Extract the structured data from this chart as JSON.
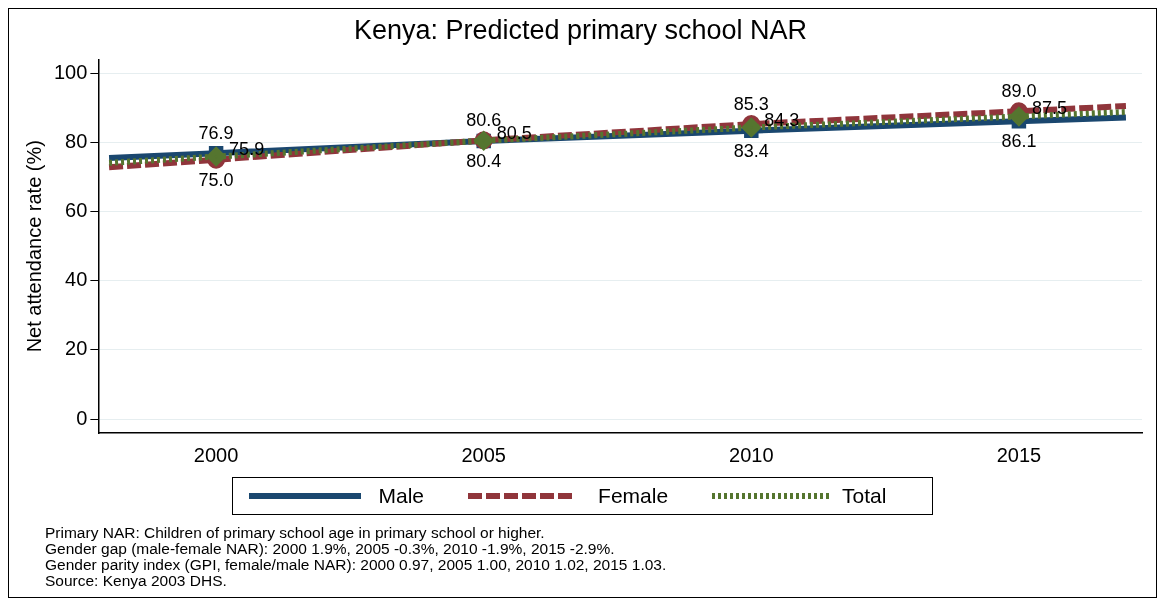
{
  "chart_data": {
    "type": "line",
    "title": "Kenya: Predicted primary school NAR",
    "ylabel": "Net attendance rate (%)",
    "x": [
      1998,
      2000,
      2005,
      2010,
      2015,
      2017
    ],
    "xlim": [
      1997.8,
      2017.3
    ],
    "xticks": [
      2000,
      2005,
      2010,
      2015
    ],
    "ylim": [
      -4,
      104
    ],
    "yticks": [
      0,
      20,
      40,
      60,
      80,
      100
    ],
    "series": [
      {
        "name": "Male",
        "color": "#1a476f",
        "line_style": "solid",
        "marker": "square",
        "values": [
          75.5,
          76.9,
          80.4,
          83.4,
          86.1,
          87.2
        ],
        "value_labels": [
          null,
          "76.9",
          "80.4",
          "83.4",
          "86.1",
          null
        ]
      },
      {
        "name": "Female",
        "color": "#90353b",
        "line_style": "dashed",
        "marker": "circle",
        "values": [
          72.8,
          75.0,
          80.6,
          85.3,
          89.0,
          90.5
        ],
        "value_labels": [
          null,
          "75.0",
          "80.6",
          "85.3",
          "89.0",
          null
        ]
      },
      {
        "name": "Total",
        "color": "#55752f",
        "line_style": "dotted",
        "marker": "diamond",
        "values": [
          74.1,
          75.9,
          80.5,
          84.3,
          87.5,
          88.8
        ],
        "value_labels": [
          null,
          "75.9",
          "80.5",
          "84.3",
          "87.5",
          null
        ]
      }
    ],
    "grid": "y",
    "legend": "bottom",
    "annotations": [
      "Primary NAR: Children of primary school age in primary school or higher.",
      "Gender gap (male-female NAR): 2000 1.9%, 2005 -0.3%, 2010 -1.9%, 2015 -2.9%.",
      "Gender parity index (GPI, female/male NAR): 2000 0.97, 2005 1.00, 2010 1.02, 2015 1.03.",
      "Source: Kenya 2003 DHS."
    ]
  }
}
